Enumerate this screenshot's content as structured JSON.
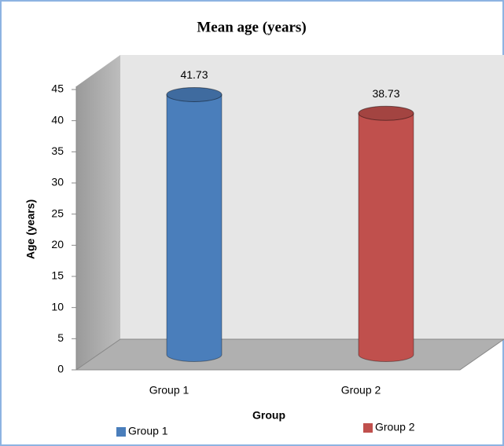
{
  "chart_data": {
    "type": "bar3d",
    "title": "Mean age (years)",
    "y_label": "Age (years)",
    "x_label": "Group",
    "categories": [
      "Group 1",
      "Group 2"
    ],
    "series": [
      {
        "name": "Group 1",
        "color": "#4a7ebb",
        "values": [
          41.73,
          null
        ]
      },
      {
        "name": "Group 2",
        "color": "#c0504d",
        "values": [
          null,
          38.73
        ]
      }
    ],
    "ylim": [
      0,
      45
    ],
    "yticks": [
      0,
      5,
      10,
      15,
      20,
      25,
      30,
      35,
      40,
      45
    ],
    "grid": false,
    "legend": "bottom"
  }
}
